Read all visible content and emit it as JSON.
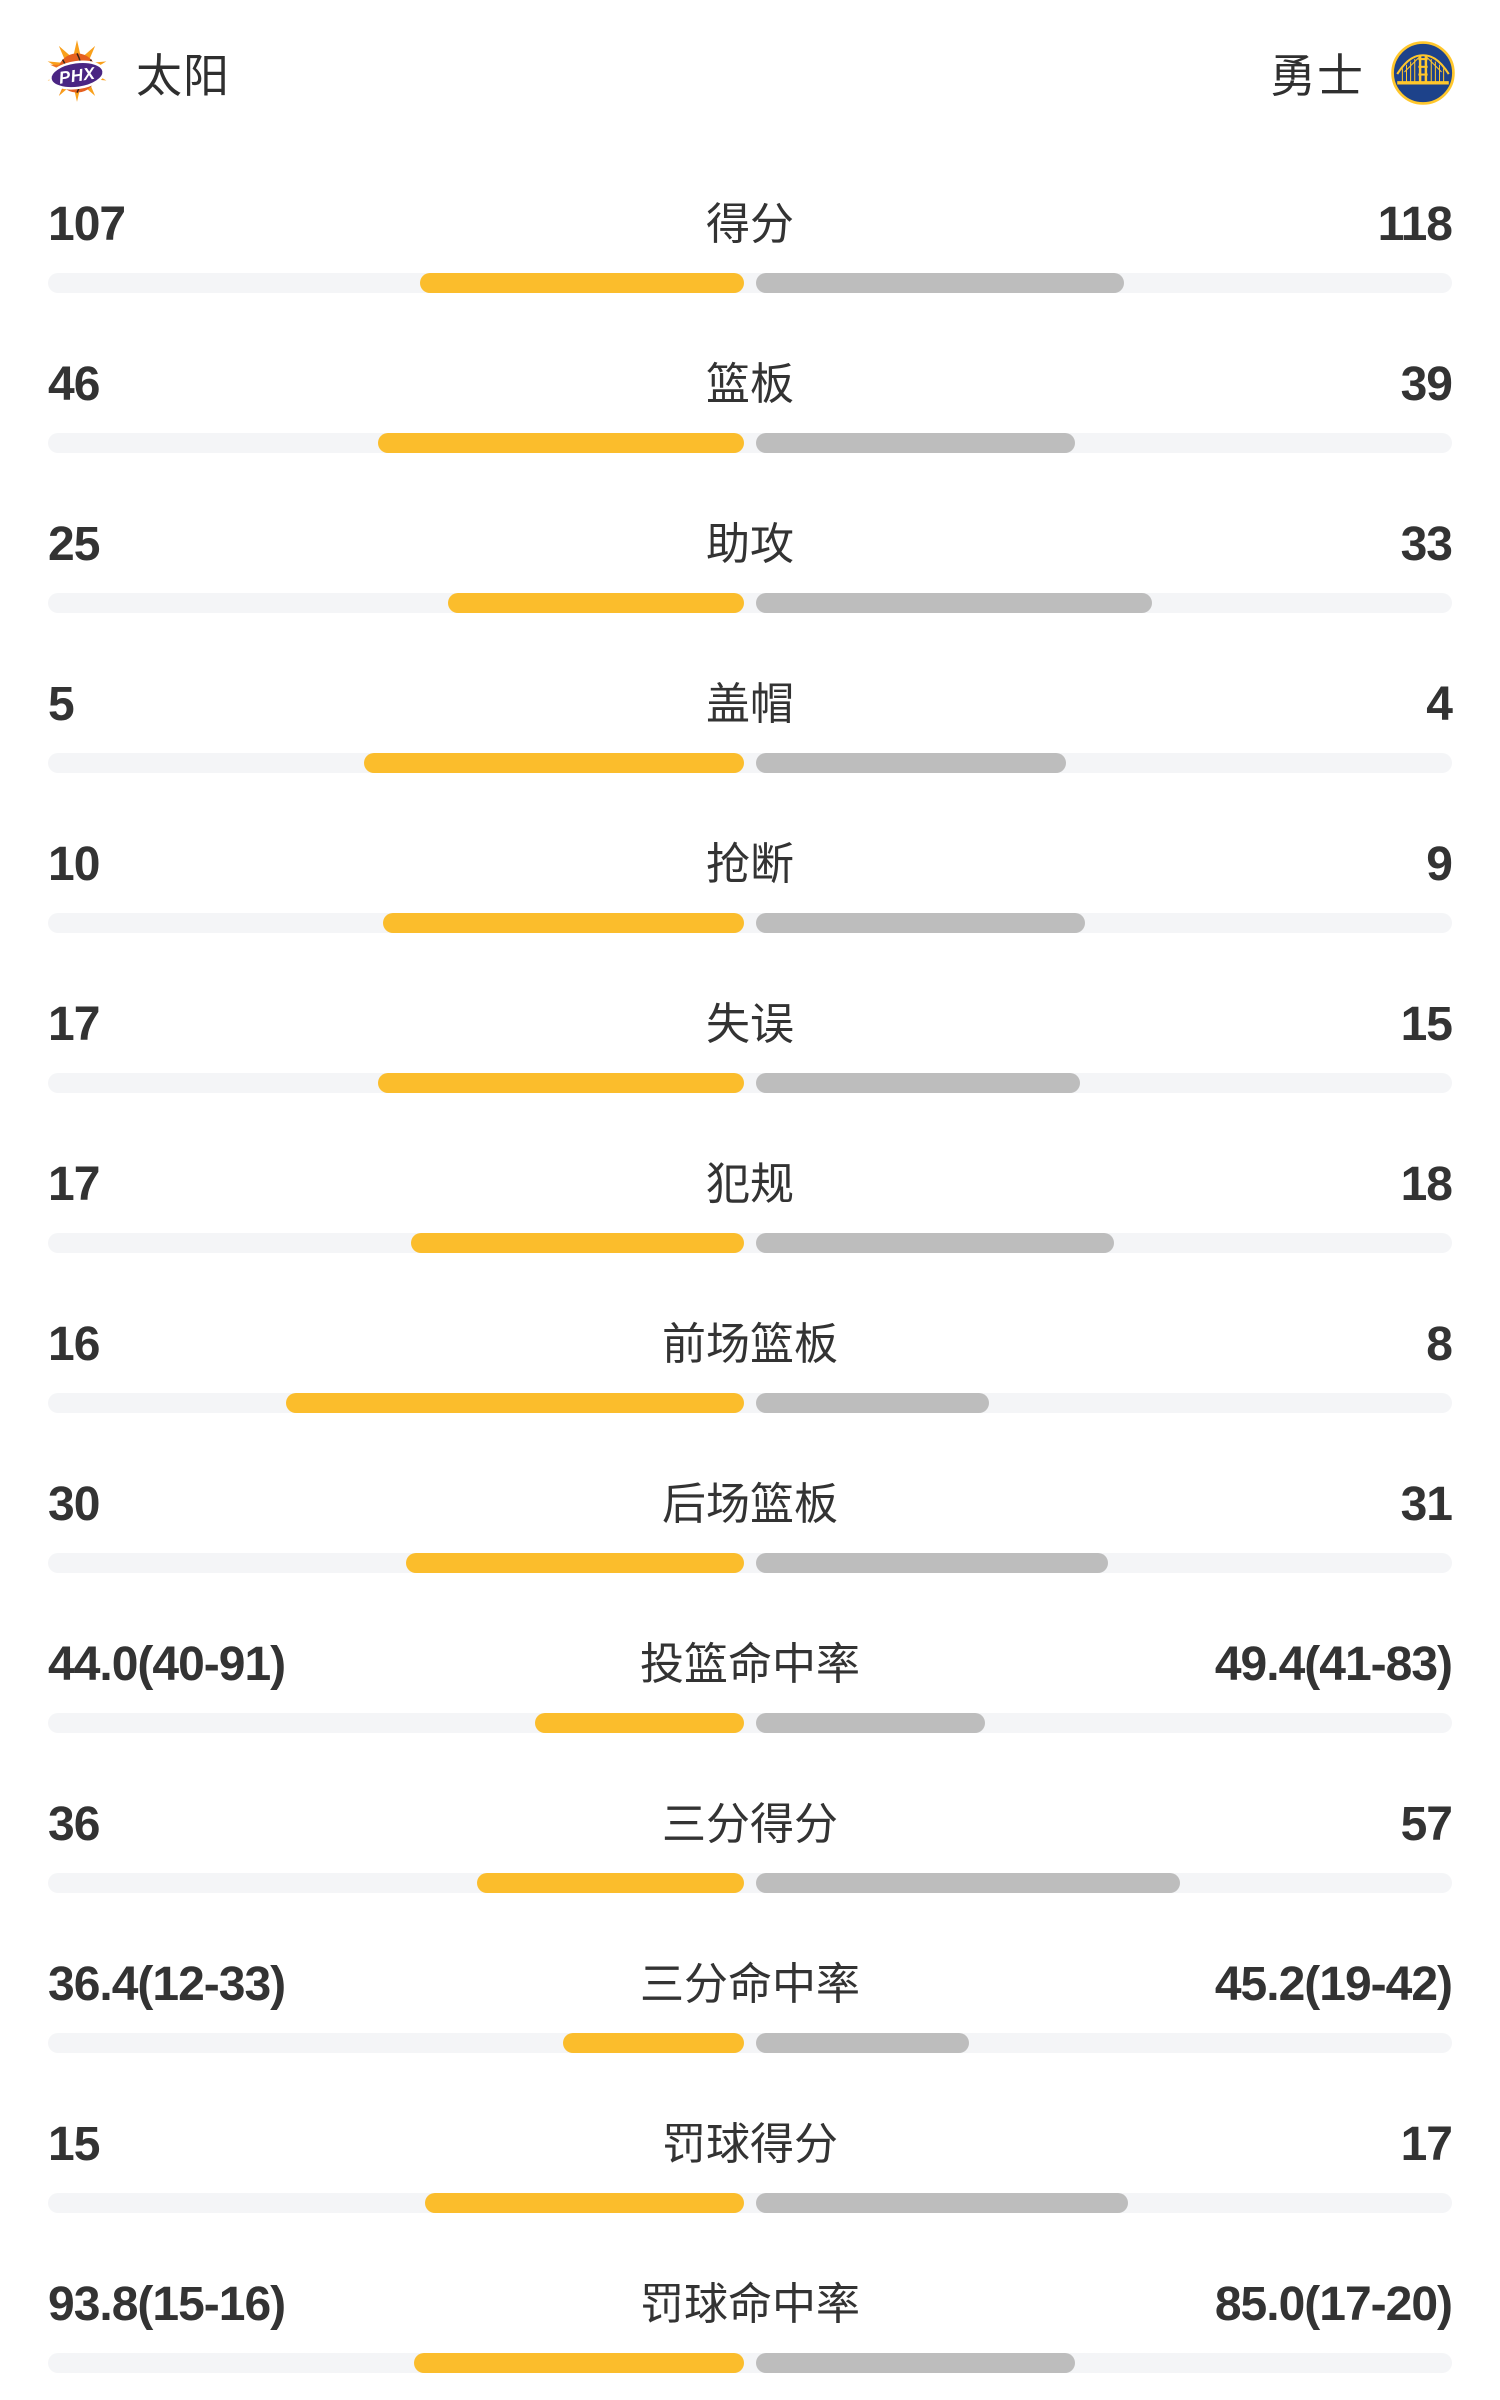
{
  "header": {
    "home": {
      "name": "太阳",
      "abbr": "PHX"
    },
    "away": {
      "name": "勇士"
    }
  },
  "colors": {
    "home_bar": "#FBBD2C",
    "away_bar": "#BDBDBD",
    "track": "#F4F5F7",
    "text": "#333333",
    "suns_orange": "#F9A01B",
    "suns_dark_orange": "#EE7623",
    "suns_ball": "#E56020",
    "suns_purple": "#4A2583",
    "warriors_blue": "#1D428A",
    "warriors_gold": "#FFC72C"
  },
  "chart_data": {
    "type": "bar",
    "layout": "mirrored-horizontal-bars-from-center",
    "legend_position": "header",
    "teams": [
      "太阳",
      "勇士"
    ],
    "rows": [
      {
        "label": "得分",
        "home": "107",
        "away": "118",
        "home_bar_pct": 23.1,
        "away_bar_pct": 26.2
      },
      {
        "label": "篮板",
        "home": "46",
        "away": "39",
        "home_bar_pct": 26.1,
        "away_bar_pct": 22.7
      },
      {
        "label": "助攻",
        "home": "25",
        "away": "33",
        "home_bar_pct": 21.1,
        "away_bar_pct": 28.2
      },
      {
        "label": "盖帽",
        "home": "5",
        "away": "4",
        "home_bar_pct": 27.1,
        "away_bar_pct": 22.1
      },
      {
        "label": "抢断",
        "home": "10",
        "away": "9",
        "home_bar_pct": 25.7,
        "away_bar_pct": 23.4
      },
      {
        "label": "失误",
        "home": "17",
        "away": "15",
        "home_bar_pct": 26.1,
        "away_bar_pct": 23.1
      },
      {
        "label": "犯规",
        "home": "17",
        "away": "18",
        "home_bar_pct": 23.7,
        "away_bar_pct": 25.5
      },
      {
        "label": "前场篮板",
        "home": "16",
        "away": "8",
        "home_bar_pct": 32.6,
        "away_bar_pct": 16.6
      },
      {
        "label": "后场篮板",
        "home": "30",
        "away": "31",
        "home_bar_pct": 24.1,
        "away_bar_pct": 25.1
      },
      {
        "label": "投篮命中率",
        "home": "44.0(40-91)",
        "away": "49.4(41-83)",
        "home_bar_pct": 14.9,
        "away_bar_pct": 16.3
      },
      {
        "label": "三分得分",
        "home": "36",
        "away": "57",
        "home_bar_pct": 19.0,
        "away_bar_pct": 30.2
      },
      {
        "label": "三分命中率",
        "home": "36.4(12-33)",
        "away": "45.2(19-42)",
        "home_bar_pct": 12.9,
        "away_bar_pct": 15.2
      },
      {
        "label": "罚球得分",
        "home": "15",
        "away": "17",
        "home_bar_pct": 22.7,
        "away_bar_pct": 26.5
      },
      {
        "label": "罚球命中率",
        "home": "93.8(15-16)",
        "away": "85.0(17-20)",
        "home_bar_pct": 23.5,
        "away_bar_pct": 22.7
      }
    ]
  }
}
